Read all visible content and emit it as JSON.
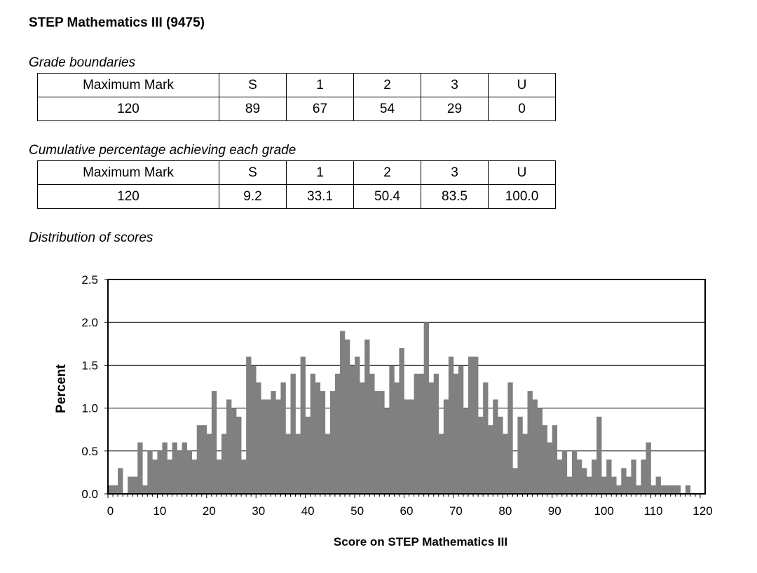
{
  "title": "STEP Mathematics III (9475)",
  "grade_boundaries": {
    "label": "Grade boundaries",
    "headers": [
      "Maximum Mark",
      "S",
      "1",
      "2",
      "3",
      "U"
    ],
    "values": [
      "120",
      "89",
      "67",
      "54",
      "29",
      "0"
    ]
  },
  "cumulative": {
    "label": "Cumulative percentage achieving each grade",
    "headers": [
      "Maximum Mark",
      "S",
      "1",
      "2",
      "3",
      "U"
    ],
    "values": [
      "120",
      "9.2",
      "33.1",
      "50.4",
      "83.5",
      "100.0"
    ]
  },
  "distribution_label": "Distribution of scores",
  "chart_data": {
    "type": "bar",
    "title": "Distribution of scores",
    "xlabel": "Score on STEP Mathematics III",
    "ylabel": "Percent",
    "xlim": [
      0,
      120
    ],
    "ylim": [
      0,
      2.5
    ],
    "yticks": [
      "0.0",
      "0.5",
      "1.0",
      "1.5",
      "2.0",
      "2.5"
    ],
    "xticks": [
      "0",
      "10",
      "20",
      "30",
      "40",
      "50",
      "60",
      "70",
      "80",
      "90",
      "100",
      "110",
      "120"
    ],
    "grid": "horizontal",
    "bar_color": "#808080",
    "x": [
      0,
      1,
      2,
      3,
      4,
      5,
      6,
      7,
      8,
      9,
      10,
      11,
      12,
      13,
      14,
      15,
      16,
      17,
      18,
      19,
      20,
      21,
      22,
      23,
      24,
      25,
      26,
      27,
      28,
      29,
      30,
      31,
      32,
      33,
      34,
      35,
      36,
      37,
      38,
      39,
      40,
      41,
      42,
      43,
      44,
      45,
      46,
      47,
      48,
      49,
      50,
      51,
      52,
      53,
      54,
      55,
      56,
      57,
      58,
      59,
      60,
      61,
      62,
      63,
      64,
      65,
      66,
      67,
      68,
      69,
      70,
      71,
      72,
      73,
      74,
      75,
      76,
      77,
      78,
      79,
      80,
      81,
      82,
      83,
      84,
      85,
      86,
      87,
      88,
      89,
      90,
      91,
      92,
      93,
      94,
      95,
      96,
      97,
      98,
      99,
      100,
      101,
      102,
      103,
      104,
      105,
      106,
      107,
      108,
      109,
      110,
      111,
      112,
      113,
      114,
      115,
      116,
      117,
      118,
      119,
      120
    ],
    "values": [
      0.1,
      0.1,
      0.3,
      0.0,
      0.2,
      0.2,
      0.6,
      0.1,
      0.5,
      0.4,
      0.5,
      0.6,
      0.4,
      0.6,
      0.5,
      0.6,
      0.5,
      0.4,
      0.8,
      0.8,
      0.7,
      1.2,
      0.4,
      0.7,
      1.1,
      1.0,
      0.9,
      0.4,
      1.6,
      1.5,
      1.3,
      1.1,
      1.1,
      1.2,
      1.1,
      1.3,
      0.7,
      1.4,
      0.7,
      1.6,
      0.9,
      1.4,
      1.3,
      1.2,
      0.7,
      1.2,
      1.4,
      1.9,
      1.8,
      1.5,
      1.6,
      1.3,
      1.8,
      1.4,
      1.2,
      1.2,
      1.0,
      1.5,
      1.3,
      1.7,
      1.1,
      1.1,
      1.4,
      1.4,
      2.0,
      1.3,
      1.4,
      0.7,
      1.1,
      1.6,
      1.4,
      1.5,
      1.0,
      1.6,
      1.6,
      0.9,
      1.3,
      0.8,
      1.1,
      0.9,
      0.7,
      1.3,
      0.3,
      0.9,
      0.7,
      1.2,
      1.1,
      1.0,
      0.8,
      0.6,
      0.8,
      0.4,
      0.5,
      0.2,
      0.5,
      0.4,
      0.3,
      0.2,
      0.4,
      0.9,
      0.2,
      0.4,
      0.2,
      0.1,
      0.3,
      0.2,
      0.4,
      0.1,
      0.4,
      0.6,
      0.1,
      0.2,
      0.1,
      0.1,
      0.1,
      0.1,
      0.0,
      0.1,
      0.0,
      0.0,
      0.0
    ]
  }
}
